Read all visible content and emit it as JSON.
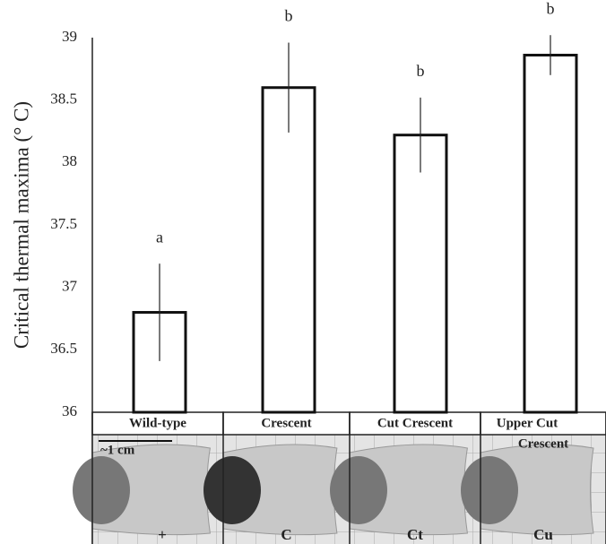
{
  "chart_data": {
    "type": "bar",
    "ylabel": "Critical thermal maxima (° C)",
    "categories": [
      "Wild-type",
      "Crescent",
      "Cut Crescent",
      "Upper Cut"
    ],
    "values": [
      36.8,
      38.6,
      38.22,
      38.86
    ],
    "errors": [
      0.39,
      0.36,
      0.3,
      0.16
    ],
    "significance_labels": [
      "a",
      "b",
      "b",
      "b"
    ],
    "color": "#ffffff",
    "ylim": [
      36,
      39
    ],
    "yticks": [
      36,
      36.5,
      37,
      37.5,
      38,
      38.5,
      39
    ],
    "photo_panel": {
      "scale_label": "~1 cm",
      "codes": [
        "+",
        "C",
        "Ct",
        "Cu"
      ],
      "extra_label": "Crescent"
    }
  }
}
